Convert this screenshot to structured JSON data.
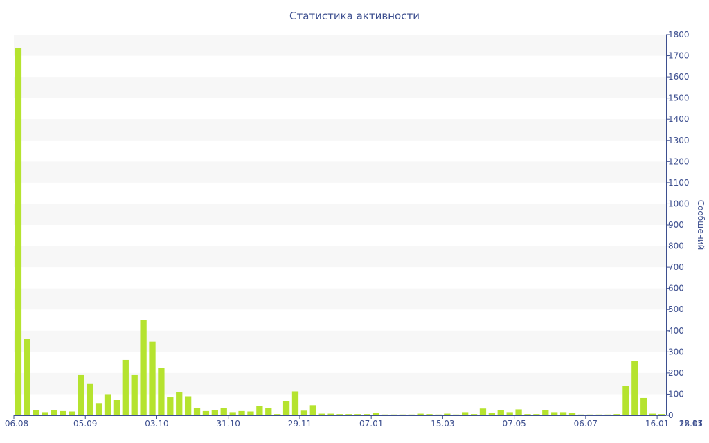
{
  "chart_data": {
    "type": "bar",
    "title": "Статистика активности",
    "ylabel": "Сообщений",
    "ylim": [
      0,
      1800
    ],
    "y_ticks": [
      0,
      100,
      200,
      300,
      400,
      500,
      600,
      700,
      800,
      900,
      1000,
      1100,
      1200,
      1300,
      1400,
      1500,
      1600,
      1700,
      1800
    ],
    "y_axis_position": "right",
    "x_tick_labels": [
      {
        "index": 0,
        "label": "06.08"
      },
      {
        "index": 8,
        "label": "05.09"
      },
      {
        "index": 16,
        "label": "03.10"
      },
      {
        "index": 24,
        "label": "31.10"
      },
      {
        "index": 32,
        "label": "29.11"
      },
      {
        "index": 40,
        "label": "07.01"
      },
      {
        "index": 48,
        "label": "15.03"
      },
      {
        "index": 56,
        "label": "07.05"
      },
      {
        "index": 64,
        "label": "06.07"
      },
      {
        "index": 72,
        "label": "16.01"
      },
      {
        "index": 80,
        "label": "13.07"
      },
      {
        "index": 88,
        "label": "22.11"
      },
      {
        "index": 96,
        "label": "28.05"
      }
    ],
    "values": [
      1735,
      360,
      25,
      15,
      25,
      20,
      18,
      190,
      148,
      58,
      100,
      72,
      262,
      190,
      450,
      348,
      225,
      85,
      110,
      90,
      35,
      20,
      25,
      35,
      15,
      20,
      18,
      45,
      35,
      6,
      68,
      113,
      22,
      48,
      8,
      8,
      6,
      6,
      6,
      6,
      12,
      4,
      4,
      4,
      4,
      8,
      6,
      4,
      8,
      4,
      15,
      6,
      32,
      10,
      25,
      15,
      28,
      6,
      6,
      25,
      15,
      15,
      12,
      4,
      4,
      4,
      4,
      6,
      140,
      258,
      82,
      8,
      6
    ],
    "colors": {
      "bar": "#b5e32f",
      "band": "#f7f7f7",
      "text": "#3d4f8f"
    },
    "grid": "alternating horizontal bands",
    "legend": "none"
  }
}
